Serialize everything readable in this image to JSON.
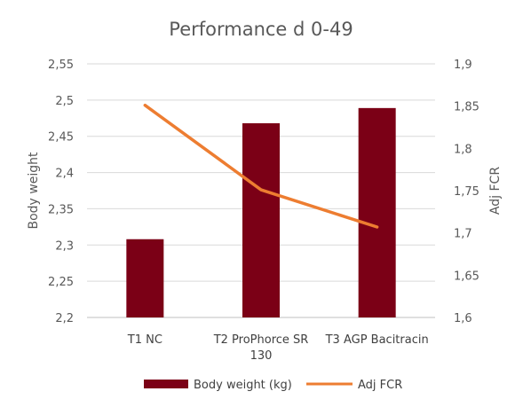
{
  "chart_data": {
    "type": "bar",
    "title": "Performance d 0-49",
    "categories": [
      [
        "T1 NC"
      ],
      [
        "T2 ProPhorce SR",
        "130"
      ],
      [
        "T3 AGP Bacitracin"
      ]
    ],
    "series": [
      {
        "name": "Body weight (kg)",
        "type": "bar",
        "axis": "left",
        "color": "#7b0016",
        "values": [
          2.308,
          2.468,
          2.489
        ]
      },
      {
        "name": "Adj FCR",
        "type": "line",
        "axis": "right",
        "color": "#ed7d31",
        "values": [
          1.851,
          1.751,
          1.707
        ]
      }
    ],
    "y_left": {
      "label": "Body weight",
      "min": 2.2,
      "max": 2.55,
      "ticks": [
        "2,2",
        "2,25",
        "2,3",
        "2,35",
        "2,4",
        "2,45",
        "2,5",
        "2,55"
      ]
    },
    "y_right": {
      "label": "Adj FCR",
      "min": 1.6,
      "max": 1.9,
      "ticks": [
        "1,6",
        "1,65",
        "1,7",
        "1,75",
        "1,8",
        "1,85",
        "1,9"
      ]
    },
    "grid": true,
    "legend_position": "bottom"
  }
}
